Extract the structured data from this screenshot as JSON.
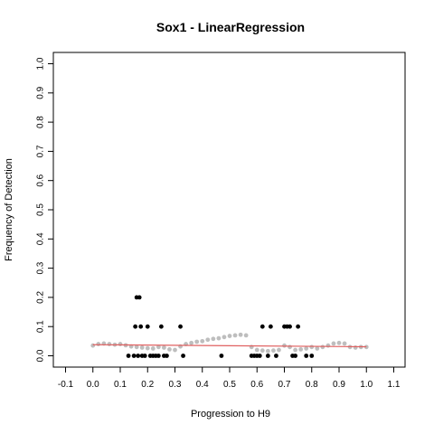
{
  "chart_data": {
    "type": "scatter",
    "title": "Sox1 - LinearRegression",
    "xlabel": "Progression to H9",
    "ylabel": "Frequency of Detection",
    "xlim": [
      -0.1,
      1.1
    ],
    "ylim": [
      0,
      1.0
    ],
    "xticks": [
      "-0.1",
      "0.0",
      "0.1",
      "0.2",
      "0.3",
      "0.4",
      "0.5",
      "0.6",
      "0.7",
      "0.8",
      "0.9",
      "1.0",
      "1.1"
    ],
    "yticks": [
      "0.0",
      "0.1",
      "0.2",
      "0.3",
      "0.4",
      "0.5",
      "0.6",
      "0.7",
      "0.8",
      "0.9",
      "1.0"
    ],
    "grid": false,
    "colors": {
      "observed": "#000000",
      "smoothed": "#bebebe",
      "fit": "#e06060",
      "frame": "#000000"
    },
    "series": [
      {
        "role": "observed",
        "x": [
          0.16,
          0.17,
          0.155,
          0.175,
          0.2,
          0.25,
          0.32,
          0.13,
          0.15,
          0.165,
          0.18,
          0.19,
          0.21,
          0.22,
          0.23,
          0.24,
          0.26,
          0.27,
          0.33,
          0.47,
          0.58,
          0.59,
          0.6,
          0.61,
          0.62,
          0.65,
          0.64,
          0.67,
          0.7,
          0.71,
          0.72,
          0.73,
          0.74,
          0.75,
          0.78,
          0.8
        ],
        "y": [
          0.2,
          0.2,
          0.1,
          0.1,
          0.1,
          0.1,
          0.1,
          0.0,
          0.0,
          0.0,
          0.0,
          0.0,
          0.0,
          0.0,
          0.0,
          0.0,
          0.0,
          0.0,
          0.0,
          0.0,
          0.0,
          0.0,
          0.0,
          0.0,
          0.1,
          0.1,
          0.0,
          0.0,
          0.1,
          0.1,
          0.1,
          0.0,
          0.0,
          0.1,
          0.0,
          0.0
        ]
      },
      {
        "role": "smoothed",
        "x": [
          0.0,
          0.02,
          0.04,
          0.06,
          0.08,
          0.1,
          0.12,
          0.14,
          0.16,
          0.18,
          0.2,
          0.22,
          0.24,
          0.26,
          0.28,
          0.3,
          0.32,
          0.34,
          0.36,
          0.38,
          0.4,
          0.42,
          0.44,
          0.46,
          0.48,
          0.5,
          0.52,
          0.54,
          0.56,
          0.58,
          0.6,
          0.62,
          0.64,
          0.66,
          0.68,
          0.7,
          0.72,
          0.74,
          0.76,
          0.78,
          0.8,
          0.82,
          0.84,
          0.86,
          0.88,
          0.9,
          0.92,
          0.94,
          0.96,
          0.98,
          1.0
        ],
        "y": [
          0.035,
          0.04,
          0.042,
          0.04,
          0.038,
          0.04,
          0.036,
          0.032,
          0.03,
          0.028,
          0.026,
          0.025,
          0.03,
          0.028,
          0.022,
          0.02,
          0.032,
          0.04,
          0.044,
          0.048,
          0.05,
          0.055,
          0.058,
          0.06,
          0.064,
          0.068,
          0.07,
          0.072,
          0.07,
          0.03,
          0.02,
          0.018,
          0.016,
          0.018,
          0.02,
          0.035,
          0.03,
          0.02,
          0.022,
          0.025,
          0.03,
          0.025,
          0.03,
          0.035,
          0.042,
          0.044,
          0.042,
          0.03,
          0.028,
          0.03,
          0.03
        ]
      },
      {
        "role": "fit",
        "x": [
          0.0,
          1.0
        ],
        "y": [
          0.038,
          0.031
        ]
      }
    ]
  }
}
